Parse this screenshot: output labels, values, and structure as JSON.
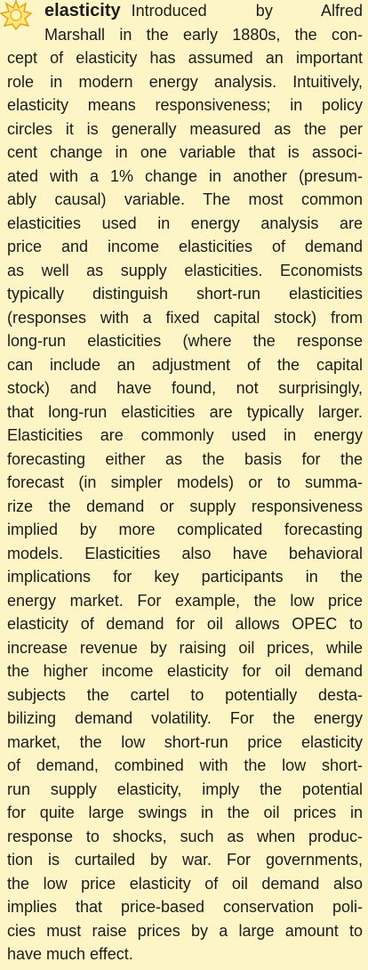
{
  "entry": {
    "term": "elasticity",
    "lines": [
      "Introduced by Alfred",
      "Marshall in the early 1880s, the con-",
      "cept of elasticity has assumed an important",
      "role in modern energy analysis. Intuitively,",
      "elasticity means responsiveness; in policy",
      "circles it is generally measured as the per",
      "cent change in one variable that is associ-",
      "ated with a 1% change in another (presum-",
      "ably causal) variable. The most common",
      "elasticities used in energy analysis are",
      "price and income elasticities of demand",
      "as well as supply elasticities. Economists",
      "typically distinguish short-run elasticities",
      "(responses with a fixed capital stock) from",
      "long-run elasticities (where the response",
      "can include an adjustment of the capital",
      "stock) and have found, not surprisingly,",
      "that long-run elasticities are typically larger.",
      "Elasticities are commonly used in energy",
      "forecasting either as the basis for the",
      "forecast (in simpler models) or to summa-",
      "rize the demand or supply responsiveness",
      "implied by more complicated forecasting",
      "models. Elasticities also have behavioral",
      "implications for key participants in the",
      "energy market. For example, the low price",
      "elasticity of demand for oil allows OPEC to",
      "increase revenue by raising oil prices, while",
      "the higher income elasticity for oil demand",
      "subjects the cartel to potentially desta-",
      "bilizing demand volatility. For the energy",
      "market, the low short-run price elasticity",
      "of demand, combined with the low short-",
      "run supply elasticity, imply the potential",
      "for quite large swings in the oil prices in",
      "response to shocks, such as when produc-",
      "tion is curtailed by war. For governments,",
      "the low price elasticity of oil demand also",
      "implies that price-based conservation poli-",
      "cies must raise prices by a large amount to",
      "have much effect."
    ]
  }
}
